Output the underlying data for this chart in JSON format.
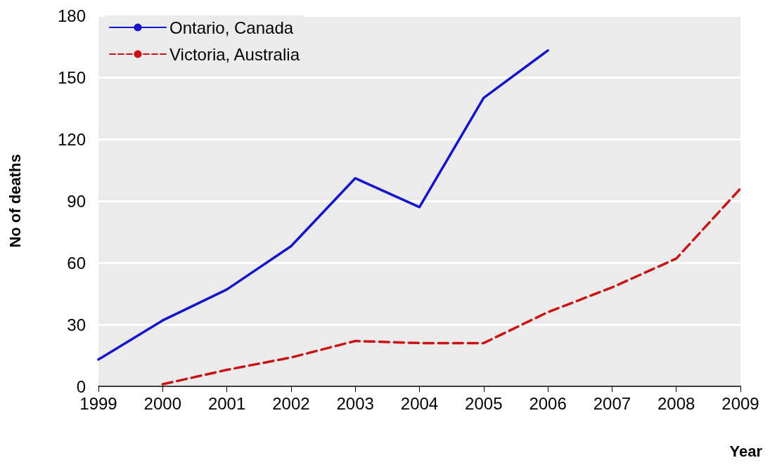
{
  "chart_data": {
    "type": "line",
    "xlabel": "Year",
    "ylabel": "No of deaths",
    "x": [
      1999,
      2000,
      2001,
      2002,
      2003,
      2004,
      2005,
      2006,
      2007,
      2008,
      2009
    ],
    "xlim": [
      1999,
      2009
    ],
    "xticks": [
      1999,
      2000,
      2001,
      2002,
      2003,
      2004,
      2005,
      2006,
      2007,
      2008,
      2009
    ],
    "ylim": [
      0,
      180
    ],
    "yticks": [
      0,
      30,
      60,
      90,
      120,
      150,
      180
    ],
    "grid": "y",
    "legend": "top left",
    "marker": "none",
    "series": [
      {
        "name": "Ontario, Canada",
        "color": "#1414c8",
        "line_style": "solid",
        "values": [
          13,
          32,
          47,
          68,
          101,
          87,
          140,
          163,
          null,
          null,
          null
        ]
      },
      {
        "name": "Victoria, Australia",
        "color": "#c81414",
        "line_style": "dashed",
        "values": [
          null,
          1,
          8,
          14,
          22,
          21,
          21,
          36,
          48,
          62,
          96
        ]
      }
    ]
  }
}
